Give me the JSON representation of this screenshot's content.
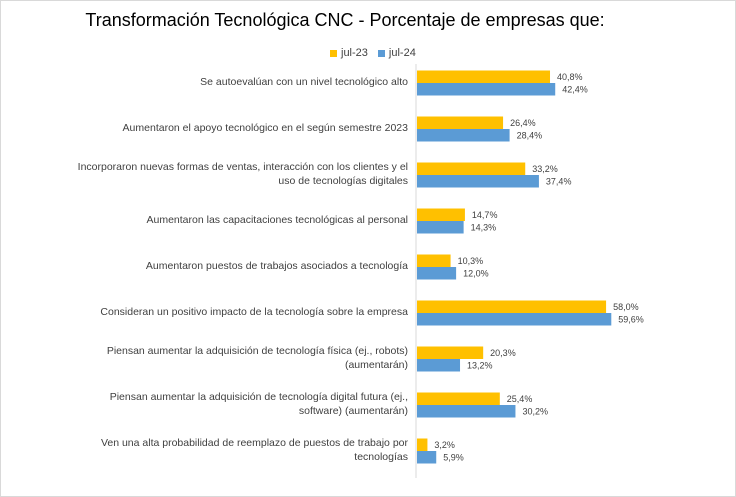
{
  "chart_data": {
    "type": "bar",
    "orientation": "horizontal",
    "title": "Transformación Tecnológica CNC - Porcentaje de empresas que:",
    "xlabel": "",
    "ylabel": "",
    "xlim": [
      0,
      70
    ],
    "grid": false,
    "legend_position": "top",
    "categories": [
      "Se autoevalúan con un nivel tecnológico alto",
      "Aumentaron el apoyo tecnológico en el según semestre 2023",
      "Incorporaron nuevas formas de ventas, interacción con los clientes y el uso de tecnologías digitales",
      "Aumentaron las capacitaciones tecnológicas al personal",
      "Aumentaron puestos de trabajos asociados a tecnología",
      "Consideran un positivo impacto de la tecnología sobre la empresa",
      "Piensan aumentar la adquisición de tecnología física  (ej., robots) (aumentarán)",
      "Piensan aumentar la adquisición  de tecnología digital futura (ej., software) (aumentarán)",
      "Ven una alta probabilidad de reemplazo de puestos de trabajo por tecnologías"
    ],
    "series": [
      {
        "name": "jul-23",
        "color": "#FFC000",
        "values": [
          40.8,
          26.4,
          33.2,
          14.7,
          10.3,
          58.0,
          20.3,
          25.4,
          3.2
        ],
        "labels": [
          "40,8%",
          "26,4%",
          "33,2%",
          "14,7%",
          "10,3%",
          "58,0%",
          "20,3%",
          "25,4%",
          "3,2%"
        ]
      },
      {
        "name": "jul-24",
        "color": "#5B9BD5",
        "values": [
          42.4,
          28.4,
          37.4,
          14.3,
          12.0,
          59.6,
          13.2,
          30.2,
          5.9
        ],
        "labels": [
          "42,4%",
          "28,4%",
          "37,4%",
          "14,3%",
          "12,0%",
          "59,6%",
          "13,2%",
          "30,2%",
          "5,9%"
        ]
      }
    ]
  }
}
